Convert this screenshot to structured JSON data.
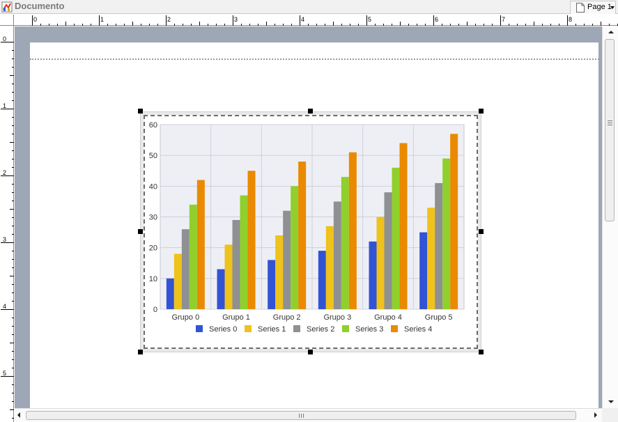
{
  "window": {
    "title": "Documento",
    "icon": "report-designer-icon"
  },
  "toolbar": {
    "page_selector_label": "Page 1",
    "page_icon": "page-icon",
    "dropdown_icon": "chevron-down-icon"
  },
  "rulers": {
    "horizontal_labels": [
      "0",
      "1",
      "2",
      "3",
      "4",
      "5",
      "6",
      "7",
      "8"
    ],
    "vertical_labels": [
      "0",
      "1",
      "2",
      "3",
      "4",
      "5"
    ]
  },
  "colors": {
    "canvas_background": "#9ea7b5",
    "plot_background": "#eeeff5",
    "series": [
      "#3254d4",
      "#efc21c",
      "#8e9092",
      "#8fd02c",
      "#ea8a00"
    ]
  },
  "chart_data": {
    "type": "bar",
    "categories": [
      "Grupo 0",
      "Grupo 1",
      "Grupo 2",
      "Grupo 3",
      "Grupo 4",
      "Grupo 5"
    ],
    "series": [
      {
        "name": "Series 0",
        "values": [
          10,
          13,
          16,
          19,
          22,
          25
        ]
      },
      {
        "name": "Series 1",
        "values": [
          18,
          21,
          24,
          27,
          30,
          33
        ]
      },
      {
        "name": "Series 2",
        "values": [
          26,
          29,
          32,
          35,
          38,
          41
        ]
      },
      {
        "name": "Series 3",
        "values": [
          34,
          37,
          40,
          43,
          46,
          49
        ]
      },
      {
        "name": "Series 4",
        "values": [
          42,
          45,
          48,
          51,
          54,
          57
        ]
      }
    ],
    "title": "",
    "xlabel": "",
    "ylabel": "",
    "ylim": [
      0,
      60
    ],
    "yticks": [
      0,
      10,
      20,
      30,
      40,
      50,
      60
    ],
    "grid": true,
    "legend": "bottom"
  }
}
